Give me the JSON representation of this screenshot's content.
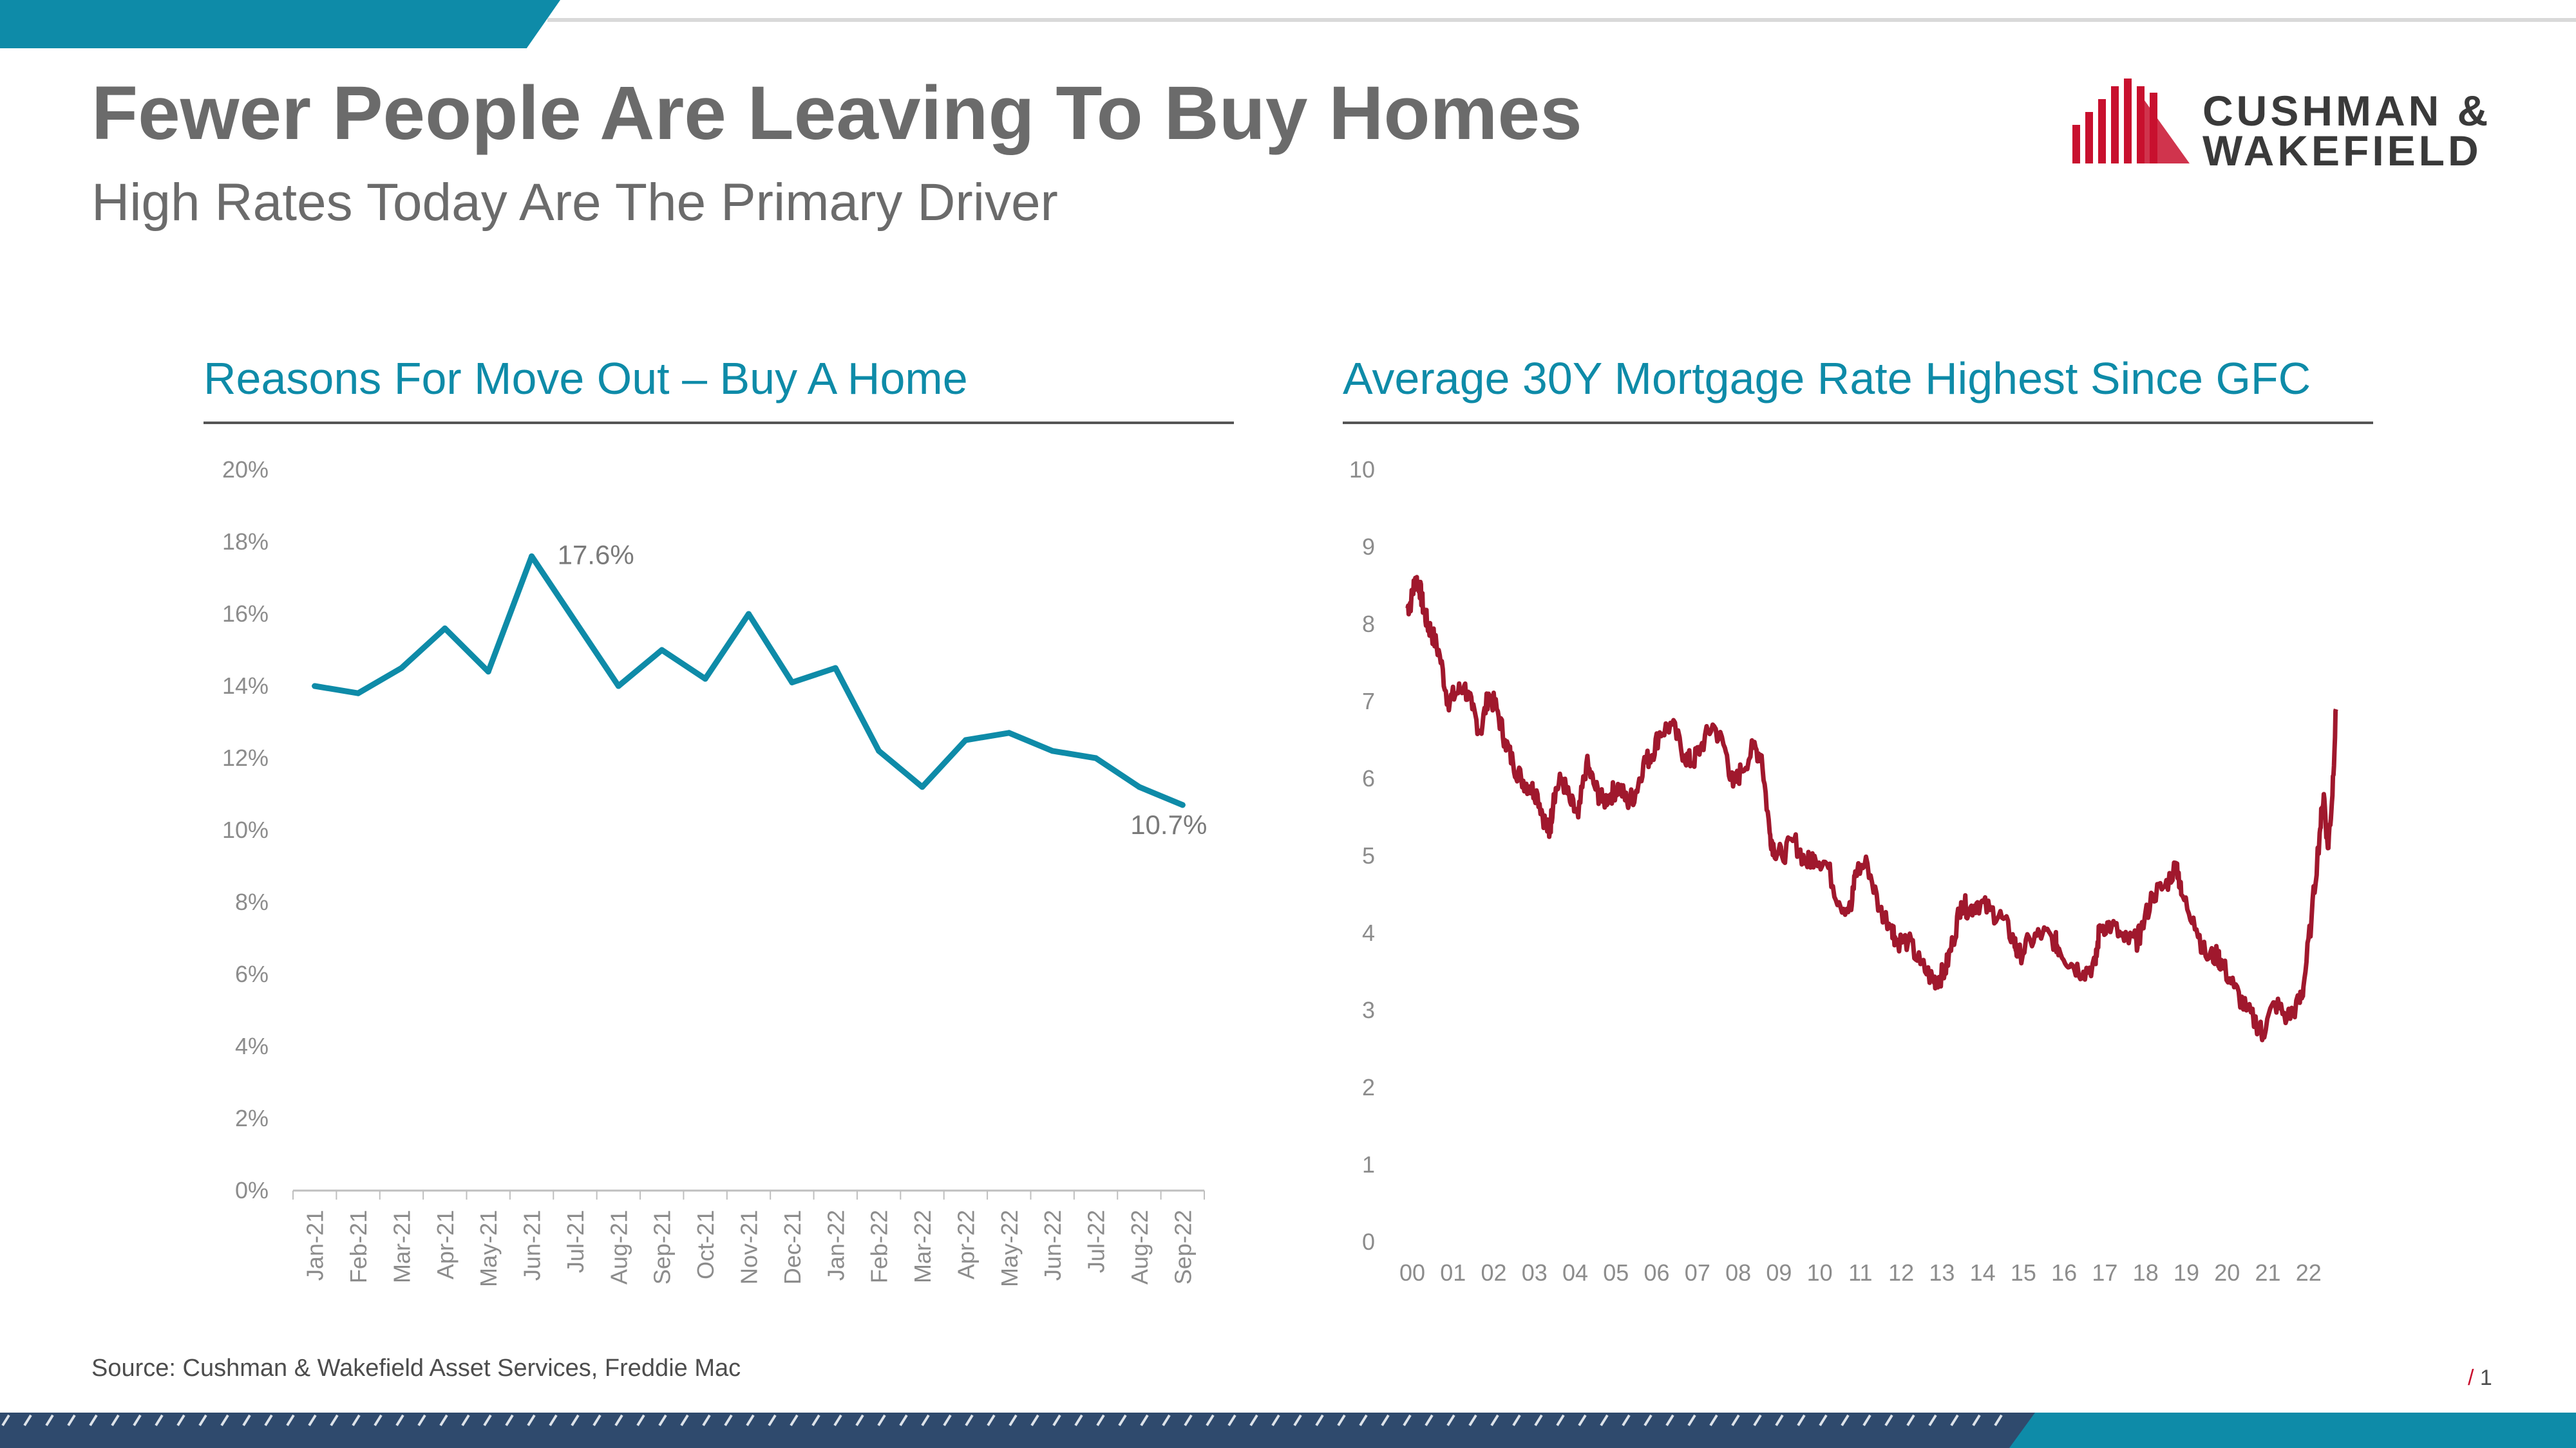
{
  "slide": {
    "title": "Fewer People Are Leaving To Buy Homes",
    "subtitle": "High Rates Today Are The Primary Driver",
    "source": "Source: Cushman & Wakefield Asset Services, Freddie Mac",
    "page_number": "1",
    "page_slash": "/"
  },
  "logo": {
    "line1": "CUSHMAN &",
    "line2": "WAKEFIELD",
    "color": "#c8102e"
  },
  "colors": {
    "accent_teal": "#0e8ba8",
    "navy": "#2f4a6d",
    "red_line": "#a0182d",
    "text_gray": "#6b6b6b"
  },
  "chart_data": [
    {
      "type": "line",
      "title": "Reasons For Move Out – Buy A Home",
      "categories": [
        "Jan-21",
        "Feb-21",
        "Mar-21",
        "Apr-21",
        "May-21",
        "Jun-21",
        "Jul-21",
        "Aug-21",
        "Sep-21",
        "Oct-21",
        "Nov-21",
        "Dec-21",
        "Jan-22",
        "Feb-22",
        "Mar-22",
        "Apr-22",
        "May-22",
        "Jun-22",
        "Jul-22",
        "Aug-22",
        "Sep-22"
      ],
      "values": [
        14.0,
        13.8,
        14.5,
        15.6,
        14.4,
        17.6,
        15.8,
        14.0,
        15.0,
        14.2,
        16.0,
        14.1,
        14.5,
        12.2,
        11.2,
        12.5,
        12.7,
        12.2,
        12.0,
        11.2,
        10.7
      ],
      "ylim": [
        0,
        20
      ],
      "yticks": [
        "0%",
        "2%",
        "4%",
        "6%",
        "8%",
        "10%",
        "12%",
        "14%",
        "16%",
        "18%",
        "20%"
      ],
      "annotations": [
        {
          "index": 5,
          "text": "17.6%"
        },
        {
          "index": 20,
          "text": "10.7%"
        }
      ],
      "color": "#0e8ba8",
      "grid": false
    },
    {
      "type": "line",
      "title": "Average 30Y Mortgage Rate Highest Since GFC",
      "x": [
        2000.0,
        2000.1,
        2000.2,
        2000.3,
        2000.4,
        2000.5,
        2000.6,
        2000.8,
        2001.0,
        2001.2,
        2001.4,
        2001.6,
        2001.8,
        2002.0,
        2002.2,
        2002.4,
        2002.6,
        2002.8,
        2003.0,
        2003.2,
        2003.4,
        2003.5,
        2003.6,
        2003.8,
        2004.0,
        2004.2,
        2004.4,
        2004.6,
        2004.8,
        2005.0,
        2005.2,
        2005.4,
        2005.6,
        2005.8,
        2006.0,
        2006.2,
        2006.5,
        2006.8,
        2007.0,
        2007.2,
        2007.5,
        2007.8,
        2008.0,
        2008.2,
        2008.5,
        2008.7,
        2008.9,
        2009.0,
        2009.2,
        2009.5,
        2009.8,
        2010.0,
        2010.3,
        2010.6,
        2010.9,
        2011.0,
        2011.3,
        2011.6,
        2011.9,
        2012.0,
        2012.3,
        2012.6,
        2012.9,
        2013.0,
        2013.2,
        2013.4,
        2013.6,
        2013.8,
        2014.0,
        2014.3,
        2014.6,
        2014.9,
        2015.0,
        2015.3,
        2015.6,
        2015.9,
        2016.0,
        2016.3,
        2016.6,
        2016.9,
        2017.0,
        2017.3,
        2017.6,
        2017.9,
        2018.0,
        2018.3,
        2018.6,
        2018.9,
        2019.0,
        2019.3,
        2019.6,
        2019.9,
        2020.0,
        2020.3,
        2020.6,
        2020.9,
        2021.0,
        2021.3,
        2021.6,
        2021.9,
        2022.0,
        2022.2,
        2022.4,
        2022.5,
        2022.6,
        2022.7,
        2022.8
      ],
      "values": [
        8.2,
        8.3,
        8.6,
        8.5,
        8.2,
        8.0,
        7.9,
        7.6,
        7.0,
        7.1,
        7.2,
        6.9,
        6.6,
        7.1,
        6.9,
        6.5,
        6.2,
        6.0,
        5.9,
        5.8,
        5.4,
        5.3,
        5.8,
        6.0,
        5.7,
        5.5,
        6.2,
        5.9,
        5.7,
        5.8,
        5.9,
        5.7,
        5.8,
        6.2,
        6.3,
        6.6,
        6.7,
        6.3,
        6.2,
        6.4,
        6.7,
        6.4,
        5.9,
        6.1,
        6.4,
        6.3,
        5.3,
        5.1,
        5.0,
        5.2,
        4.9,
        5.0,
        4.9,
        4.4,
        4.3,
        4.8,
        4.9,
        4.3,
        4.1,
        3.9,
        3.9,
        3.6,
        3.4,
        3.4,
        3.5,
        3.9,
        4.4,
        4.3,
        4.4,
        4.3,
        4.2,
        3.9,
        3.7,
        3.9,
        4.0,
        3.9,
        3.8,
        3.6,
        3.5,
        3.6,
        4.1,
        4.1,
        3.9,
        3.9,
        4.0,
        4.5,
        4.6,
        4.9,
        4.5,
        4.2,
        3.7,
        3.7,
        3.6,
        3.3,
        3.0,
        2.8,
        2.7,
        3.1,
        2.9,
        3.1,
        3.3,
        4.2,
        5.3,
        5.8,
        5.1,
        5.7,
        6.9
      ],
      "xticks": [
        "00",
        "01",
        "02",
        "03",
        "04",
        "05",
        "06",
        "07",
        "08",
        "09",
        "10",
        "11",
        "12",
        "13",
        "14",
        "15",
        "16",
        "17",
        "18",
        "19",
        "20",
        "21",
        "22"
      ],
      "ylim": [
        0,
        10
      ],
      "yticks": [
        "0",
        "1",
        "2",
        "3",
        "4",
        "5",
        "6",
        "7",
        "8",
        "9",
        "10"
      ],
      "color": "#a0182d",
      "grid": false
    }
  ]
}
